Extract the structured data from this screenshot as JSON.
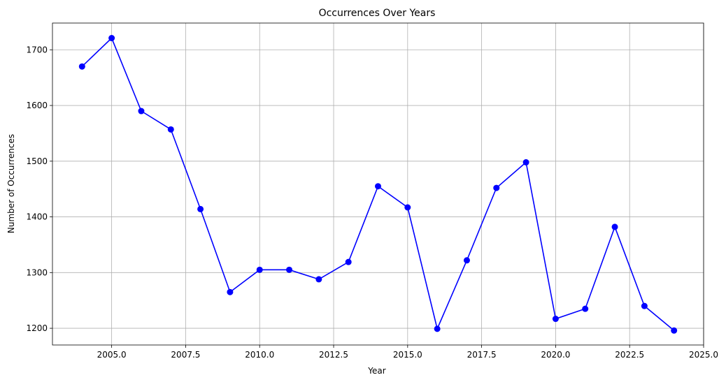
{
  "chart_data": {
    "type": "line",
    "title": "Occurrences Over Years",
    "xlabel": "Year",
    "ylabel": "Number of Occurrences",
    "xlim": [
      2003,
      2025
    ],
    "ylim": [
      1170,
      1748
    ],
    "xticks": [
      2005.0,
      2007.5,
      2010.0,
      2012.5,
      2015.0,
      2017.5,
      2020.0,
      2022.5,
      2025.0
    ],
    "xtick_labels": [
      "2005.0",
      "2007.5",
      "2010.0",
      "2012.5",
      "2015.0",
      "2017.5",
      "2020.0",
      "2022.5",
      "2025.0"
    ],
    "yticks": [
      1200,
      1300,
      1400,
      1500,
      1600,
      1700
    ],
    "ytick_labels": [
      "1200",
      "1300",
      "1400",
      "1500",
      "1600",
      "1700"
    ],
    "grid": true,
    "line_color": "#0000ff",
    "marker": "circle",
    "x": [
      2004,
      2005,
      2006,
      2007,
      2008,
      2009,
      2010,
      2011,
      2012,
      2013,
      2014,
      2015,
      2016,
      2017,
      2018,
      2019,
      2020,
      2021,
      2022,
      2023,
      2024
    ],
    "y": [
      1670,
      1721,
      1590,
      1557,
      1414,
      1265,
      1305,
      1305,
      1288,
      1319,
      1455,
      1417,
      1199,
      1322,
      1452,
      1498,
      1217,
      1235,
      1382,
      1240,
      1196
    ]
  }
}
